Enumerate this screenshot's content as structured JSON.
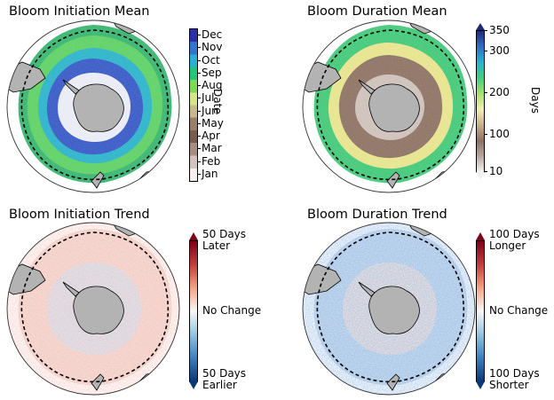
{
  "panels": [
    {
      "title": "Bloom Initiation Mean"
    },
    {
      "title": "Bloom Duration Mean"
    },
    {
      "title": "Bloom Initiation Trend"
    },
    {
      "title": "Bloom Duration Trend"
    }
  ],
  "colorbars": {
    "initiation_mean": {
      "label": "Date",
      "ticks": [
        "Dec",
        "Nov",
        "Oct",
        "Sep",
        "Aug",
        "Jul",
        "Jun",
        "May",
        "Apr",
        "Mar",
        "Feb",
        "Jan"
      ],
      "colors": [
        "#2b2fa8",
        "#2f76cf",
        "#28b0d6",
        "#22c77a",
        "#7ed957",
        "#d6e58a",
        "#c8b98a",
        "#9a7f6a",
        "#7a5c4e",
        "#a88e82",
        "#d2c4bd",
        "#f5f0ee"
      ]
    },
    "duration_mean": {
      "label": "Days",
      "ticks": [
        "350",
        "300",
        "200",
        "100",
        "10"
      ],
      "colors": [
        "#1d2a7a",
        "#2f6fc4",
        "#25b5d0",
        "#3fd07f",
        "#a6e06a",
        "#f0f0b0",
        "#c8b08a",
        "#8e7262",
        "#b8a8a0",
        "#f7f4f2"
      ]
    },
    "initiation_trend": {
      "top": [
        "50 Days",
        "Later"
      ],
      "middle": "No Change",
      "bottom": [
        "50 Days",
        "Earlier"
      ]
    },
    "duration_trend": {
      "top": [
        "100 Days",
        "Longer"
      ],
      "middle": "No Change",
      "bottom": [
        "100 Days",
        "Shorter"
      ]
    }
  },
  "colors": {
    "land": "#b3b3b3",
    "ocean_gap": "#ffffff",
    "diverging_pos": "#7f0019",
    "diverging_neg": "#0a3875"
  }
}
